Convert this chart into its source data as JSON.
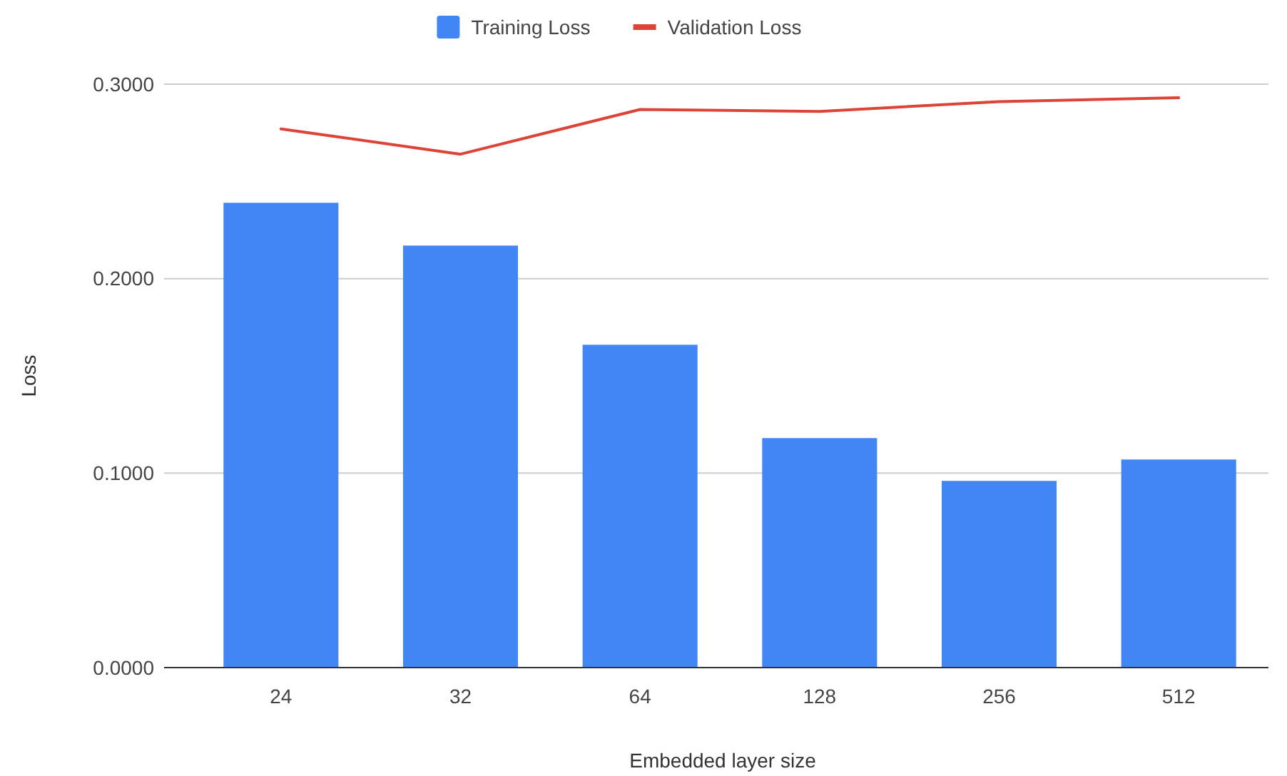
{
  "chart_data": {
    "type": "bar",
    "xlabel": "Embedded layer size",
    "ylabel": "Loss",
    "categories": [
      "24",
      "32",
      "64",
      "128",
      "256",
      "512"
    ],
    "series": [
      {
        "name": "Training Loss",
        "color": "#4285f4",
        "values": [
          0.239,
          0.217,
          0.166,
          0.118,
          0.096,
          0.107
        ]
      },
      {
        "name": "Validation Loss",
        "type": "line",
        "color": "#db4437",
        "values": [
          0.277,
          0.264,
          0.287,
          0.286,
          0.291,
          0.293
        ]
      }
    ],
    "ylim": [
      0,
      0.3
    ],
    "yticks": [
      {
        "value": 0,
        "label": "0.0000"
      },
      {
        "value": 0.1,
        "label": "0.1000"
      },
      {
        "value": 0.2,
        "label": "0.2000"
      },
      {
        "value": 0.3,
        "label": "0.3000"
      }
    ],
    "grid": "y",
    "legend": "top"
  }
}
